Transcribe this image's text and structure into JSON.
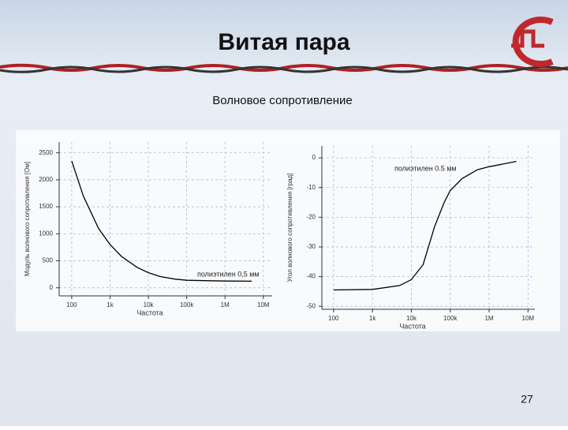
{
  "slide": {
    "title": "Витая пара",
    "subtitle": "Волновое сопротивление",
    "page_number": "27"
  },
  "chart_data": [
    {
      "type": "line",
      "annotation": "полиэтилен 0,5 мм",
      "xlabel": "Частота",
      "ylabel": "Модуль волнового сопротивления [Ом]",
      "x": [
        100,
        200,
        500,
        1000,
        2000,
        5000,
        10000,
        20000,
        50000,
        100000,
        1000000,
        5000000
      ],
      "series": [
        {
          "color": "#000000",
          "values": [
            2350,
            1700,
            1100,
            800,
            580,
            380,
            280,
            210,
            160,
            140,
            125,
            122
          ]
        }
      ],
      "xlog": true,
      "xlim": [
        47,
        17000000
      ],
      "xticks": [
        {
          "value": 100,
          "label": "100"
        },
        {
          "value": 1000,
          "label": "1k"
        },
        {
          "value": 10000,
          "label": "10k"
        },
        {
          "value": 100000,
          "label": "100k"
        },
        {
          "value": 1000000,
          "label": "1M"
        },
        {
          "value": 10000000,
          "label": "10M"
        }
      ],
      "ylim": [
        -150,
        2700
      ],
      "yticks": [
        0,
        500,
        1000,
        1500,
        2000,
        2500
      ],
      "grid": true
    },
    {
      "type": "line",
      "annotation": "полиэтилен 0.5 мм",
      "xlabel": "Частота",
      "ylabel": "Угол волнового сопротивления [град]",
      "x": [
        100,
        1000,
        5000,
        10000,
        20000,
        40000,
        70000,
        100000,
        200000,
        500000,
        1000000,
        5000000
      ],
      "series": [
        {
          "color": "#000000",
          "values": [
            -44.5,
            -44.3,
            -43,
            -41,
            -36,
            -23,
            -15,
            -11,
            -7,
            -4,
            -3,
            -1.2
          ]
        }
      ],
      "xlog": true,
      "xlim": [
        50,
        15000000
      ],
      "xticks": [
        {
          "value": 100,
          "label": "100"
        },
        {
          "value": 1000,
          "label": "1k"
        },
        {
          "value": 10000,
          "label": "10k"
        },
        {
          "value": 100000,
          "label": "100k"
        },
        {
          "value": 1000000,
          "label": "1M"
        },
        {
          "value": 10000000,
          "label": "10M"
        }
      ],
      "ylim": [
        -51,
        4
      ],
      "yticks": [
        0,
        -10,
        -20,
        -30,
        -40,
        -50
      ],
      "grid": true
    }
  ]
}
